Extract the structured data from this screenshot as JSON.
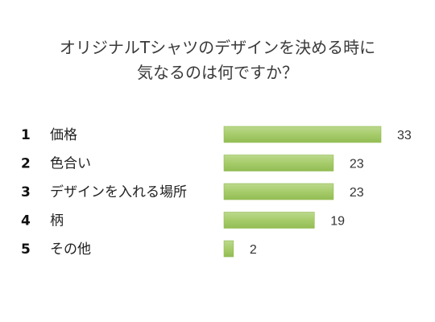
{
  "chart_data": {
    "type": "bar",
    "orientation": "horizontal",
    "title_lines": [
      "オリジナルTシャツのデザインを決める時に",
      "気なるのは何ですか？"
    ],
    "ranks": [
      "1",
      "2",
      "3",
      "4",
      "5"
    ],
    "categories": [
      "価格",
      "色合い",
      "デザインを入れる場所",
      "柄",
      "その他"
    ],
    "values": [
      33,
      23,
      23,
      19,
      2
    ],
    "data_labels": [
      "33",
      "23",
      "23",
      "19",
      "2"
    ],
    "xlim": [
      0,
      33
    ],
    "grid": false,
    "legend": "none",
    "bar_color": "#a6cc6a",
    "bar_edge_color": "#8fbb4e"
  }
}
